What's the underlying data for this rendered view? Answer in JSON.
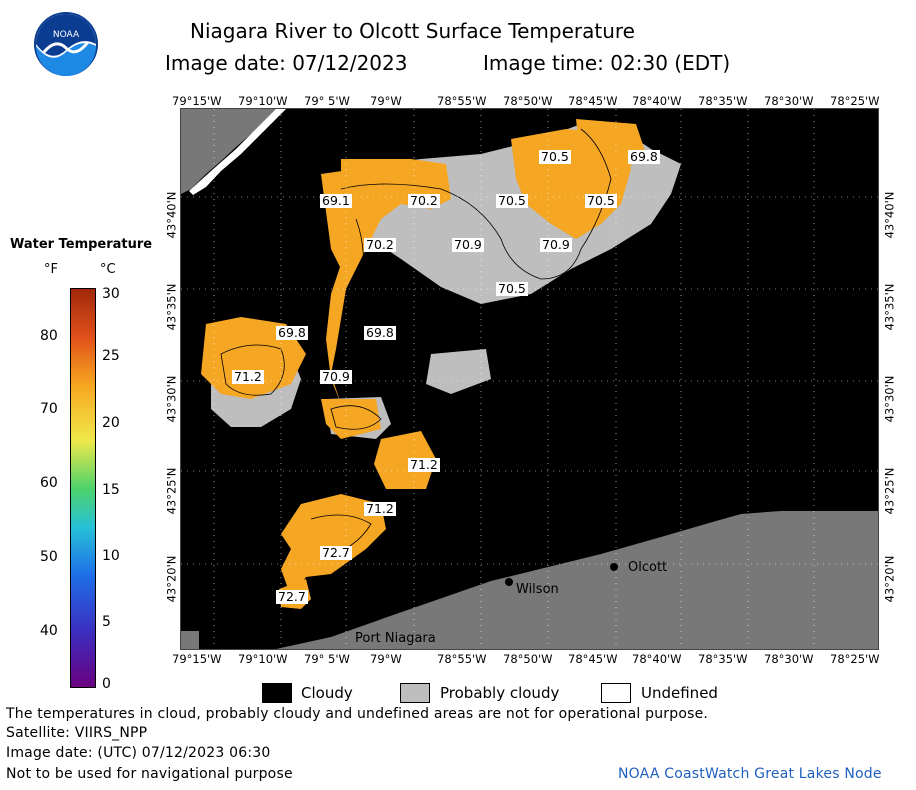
{
  "header": {
    "title": "Niagara River to Olcott Surface Temperature",
    "image_date": "Image date: 07/12/2023",
    "image_time": "Image time: 02:30 (EDT)"
  },
  "logo": {
    "text": "NOAA"
  },
  "colorbar": {
    "title": "Water Temperature",
    "unit_f": "°F",
    "unit_c": "°C",
    "f_ticks": [
      "80",
      "70",
      "60",
      "50",
      "40"
    ],
    "c_ticks": [
      "30",
      "25",
      "20",
      "15",
      "10",
      "5",
      "0"
    ]
  },
  "axes": {
    "lon_ticks": [
      "79°15'W",
      "79°10'W",
      "79° 5'W",
      "79°W",
      "78°55'W",
      "78°50'W",
      "78°45'W",
      "78°40'W",
      "78°35'W",
      "78°30'W",
      "78°25'W"
    ],
    "lat_ticks": [
      "43°40'N",
      "43°35'N",
      "43°30'N",
      "43°25'N",
      "43°20'N"
    ]
  },
  "map": {
    "isotherms": [
      "70.5",
      "69.8",
      "69.1",
      "70.2",
      "70.5",
      "70.5",
      "70.2",
      "70.9",
      "70.9",
      "70.5",
      "69.8",
      "69.8",
      "71.2",
      "70.9",
      "71.2",
      "71.2",
      "72.7",
      "72.7"
    ],
    "places": [
      "Olcott",
      "Wilson",
      "Port Niagara"
    ]
  },
  "legend": {
    "cloudy": "Cloudy",
    "probably_cloudy": "Probably cloudy",
    "undefined": "Undefined"
  },
  "footer": {
    "disclaimer": "The temperatures in cloud, probably cloudy and undefined areas are not for operational purpose.",
    "satellite": "Satellite: VIIRS_NPP",
    "utc_date": "Image date: (UTC) 07/12/2023  06:30",
    "nav_warning": "Not to be used for navigational purpose",
    "credit": "NOAA CoastWatch Great Lakes Node"
  },
  "colors": {
    "cloudy": "#000000",
    "probably_cloudy": "#bebebe",
    "land": "#787878",
    "water_warm": "#f5a623",
    "credit": "#1f5fbf"
  }
}
